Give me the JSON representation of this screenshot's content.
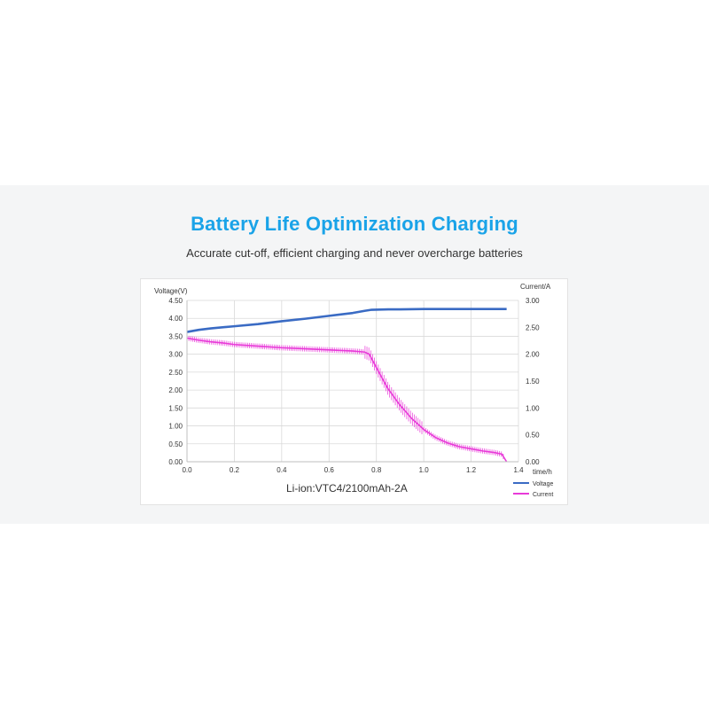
{
  "headline": "Battery Life Optimization Charging",
  "subline": "Accurate cut-off, efficient charging and never overcharge batteries",
  "colors": {
    "headline": "#1aa3e8",
    "voltage": "#3a6bc4",
    "current": "#e83ad8",
    "grid": "#d9d9d9",
    "band": "#f4f5f6"
  },
  "chart_data": {
    "type": "line",
    "caption": "Li-ion:VTC4/2100mAh-2A",
    "y_left_label": "Voltage(V)",
    "y_right_label": "Current/A",
    "x_label": "time/h",
    "xlim": [
      0,
      1.4
    ],
    "ylim_left": [
      0,
      4.5
    ],
    "ylim_right": [
      0,
      3.0
    ],
    "x_ticks": [
      "0.0",
      "0.2",
      "0.4",
      "0.6",
      "0.8",
      "1.0",
      "1.2",
      "1.4"
    ],
    "y_left_ticks": [
      "0.00",
      "0.50",
      "1.00",
      "1.50",
      "2.00",
      "2.50",
      "3.00",
      "3.50",
      "4.00",
      "4.50"
    ],
    "y_right_ticks": [
      "0.00",
      "0.50",
      "1.00",
      "1.50",
      "2.00",
      "2.50",
      "3.00"
    ],
    "grid": true,
    "legend_position": "bottom-right",
    "series": [
      {
        "name": "Voltage",
        "axis": "left",
        "x": [
          0.0,
          0.05,
          0.1,
          0.2,
          0.3,
          0.4,
          0.5,
          0.6,
          0.7,
          0.75,
          0.78,
          0.85,
          0.9,
          1.0,
          1.1,
          1.2,
          1.3,
          1.35
        ],
        "values": [
          3.62,
          3.68,
          3.72,
          3.78,
          3.84,
          3.92,
          3.99,
          4.07,
          4.15,
          4.21,
          4.24,
          4.25,
          4.25,
          4.26,
          4.26,
          4.26,
          4.26,
          4.26
        ]
      },
      {
        "name": "Current",
        "axis": "right",
        "x": [
          0.0,
          0.05,
          0.1,
          0.15,
          0.2,
          0.3,
          0.4,
          0.5,
          0.6,
          0.7,
          0.75,
          0.77,
          0.8,
          0.85,
          0.9,
          0.95,
          1.0,
          1.05,
          1.1,
          1.15,
          1.2,
          1.25,
          1.3,
          1.33,
          1.35
        ],
        "values": [
          2.3,
          2.26,
          2.23,
          2.21,
          2.18,
          2.15,
          2.12,
          2.1,
          2.08,
          2.06,
          2.04,
          2.0,
          1.75,
          1.35,
          1.05,
          0.8,
          0.6,
          0.45,
          0.35,
          0.28,
          0.24,
          0.2,
          0.17,
          0.14,
          0.0
        ]
      }
    ]
  }
}
